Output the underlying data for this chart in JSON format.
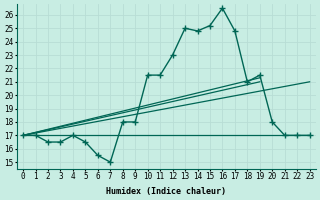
{
  "xlabel": "Humidex (Indice chaleur)",
  "bg_color": "#c8ede3",
  "line_color": "#006655",
  "grid_color": "#b8ddd5",
  "xlim": [
    -0.5,
    23.5
  ],
  "ylim": [
    14.5,
    26.8
  ],
  "xticks": [
    0,
    1,
    2,
    3,
    4,
    5,
    6,
    7,
    8,
    9,
    10,
    11,
    12,
    13,
    14,
    15,
    16,
    17,
    18,
    19,
    20,
    21,
    22,
    23
  ],
  "yticks": [
    15,
    16,
    17,
    18,
    19,
    20,
    21,
    22,
    23,
    24,
    25,
    26
  ],
  "main_line_x": [
    0,
    1,
    2,
    3,
    4,
    5,
    6,
    7,
    8,
    9,
    10,
    11,
    12,
    13,
    14,
    15,
    16,
    17,
    18,
    19,
    20,
    21,
    22,
    23
  ],
  "main_line_y": [
    17.0,
    17.0,
    16.5,
    16.5,
    17.0,
    16.5,
    15.5,
    15.0,
    18.0,
    18.0,
    21.5,
    21.5,
    23.0,
    25.0,
    24.8,
    25.2,
    26.5,
    24.8,
    21.0,
    21.5,
    18.0,
    17.0,
    17.0,
    17.0
  ],
  "flat_line": {
    "x": [
      0,
      23
    ],
    "y": [
      17.0,
      17.0
    ]
  },
  "trend_line1": {
    "x": [
      0,
      19
    ],
    "y": [
      17.0,
      21.0
    ]
  },
  "trend_line2": {
    "x": [
      0,
      19
    ],
    "y": [
      17.0,
      21.3
    ]
  },
  "trend_line3": {
    "x": [
      0,
      23
    ],
    "y": [
      17.0,
      21.0
    ]
  },
  "xlabel_fontsize": 6,
  "tick_fontsize": 5.5
}
